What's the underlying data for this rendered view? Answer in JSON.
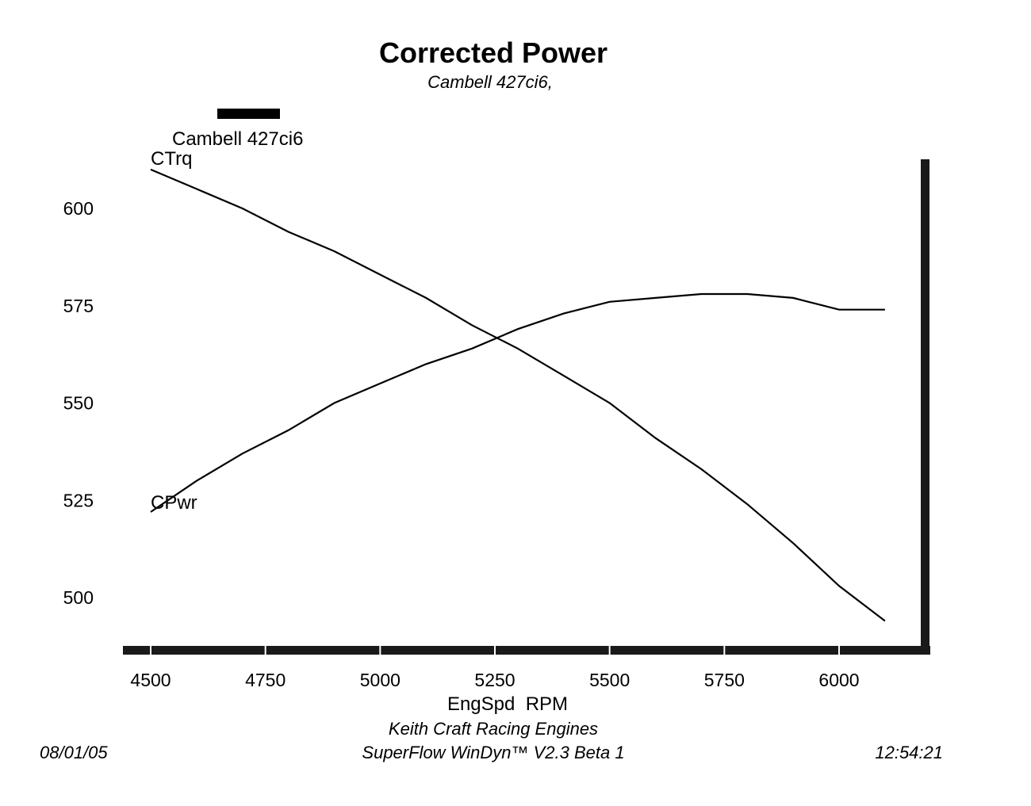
{
  "chart_data": {
    "type": "line",
    "title": "Corrected Power",
    "subtitle": "Cambell 427ci6,",
    "xlabel": "EngSpd  RPM",
    "ylabel": "",
    "xlim": [
      4450,
      6200
    ],
    "ylim": [
      488,
      613
    ],
    "x_ticks": [
      4500,
      4750,
      5000,
      5250,
      5500,
      5750,
      6000
    ],
    "y_ticks": [
      500,
      525,
      550,
      575,
      600
    ],
    "legend": {
      "entry": "Cambell 427ci6",
      "placement": "top-left"
    },
    "grid": false,
    "series": [
      {
        "name": "CTrq",
        "x": [
          4500,
          4600,
          4700,
          4800,
          4900,
          5000,
          5100,
          5200,
          5300,
          5400,
          5500,
          5600,
          5700,
          5800,
          5900,
          6000,
          6100
        ],
        "values": [
          610,
          605,
          600,
          594,
          589,
          583,
          577,
          570,
          564,
          557,
          550,
          541,
          533,
          524,
          514,
          503,
          494
        ]
      },
      {
        "name": "CPwr",
        "x": [
          4500,
          4600,
          4700,
          4800,
          4900,
          5000,
          5100,
          5200,
          5300,
          5400,
          5500,
          5600,
          5700,
          5800,
          5900,
          6000,
          6100
        ],
        "values": [
          522,
          530,
          537,
          543,
          550,
          555,
          560,
          564,
          569,
          573,
          576,
          577,
          578,
          578,
          577,
          574,
          574
        ]
      }
    ]
  },
  "footer": {
    "company": "Keith Craft Racing Engines",
    "software": "SuperFlow WinDyn™ V2.3 Beta 1",
    "date": "08/01/05",
    "time": "12:54:21"
  }
}
